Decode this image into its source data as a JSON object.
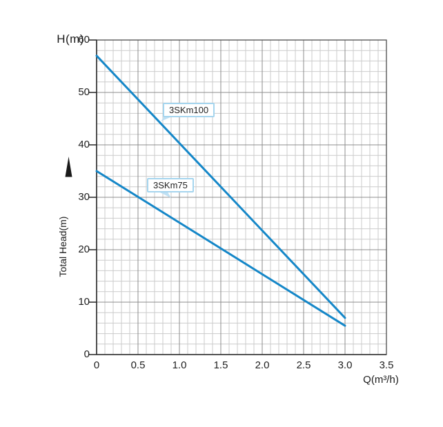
{
  "figure": {
    "background": "#ffffff"
  },
  "chart_data": {
    "type": "line",
    "title": "",
    "xlabel": "Q(m³/h)",
    "ylabel": "Total Head(m)",
    "y_axis_unit_label": "H(m)",
    "xlim": [
      0,
      3.5
    ],
    "ylim": [
      0,
      60
    ],
    "x_major_step": 0.5,
    "x_minor_step": 0.1,
    "y_major_step": 10,
    "y_minor_step": 2,
    "x_tick_labels": [
      "0",
      "0.5",
      "1.0",
      "1.5",
      "2.0",
      "2.5",
      "3.0",
      "3.5"
    ],
    "y_tick_labels": [
      "0",
      "10",
      "20",
      "30",
      "40",
      "50",
      "60"
    ],
    "grid": "on",
    "legend_position": "inline-callouts",
    "series": [
      {
        "name": "3SKm100",
        "points": [
          [
            0,
            57
          ],
          [
            3.0,
            7
          ]
        ]
      },
      {
        "name": "3SKm75",
        "points": [
          [
            0,
            35
          ],
          [
            3.0,
            5.5
          ]
        ]
      }
    ],
    "colors": {
      "curve": "#1587c8",
      "grid_minor": "#cbcbcb",
      "grid_major": "#8c8c8c",
      "axis_border": "#4a4a4a",
      "tick": "#222222",
      "text": "#1a1a1a",
      "callout_border": "#a5d5ee",
      "callout_fill": "#ffffff",
      "callout_tail": "#bfe0f3",
      "arrow": "#1a1a1a"
    }
  }
}
